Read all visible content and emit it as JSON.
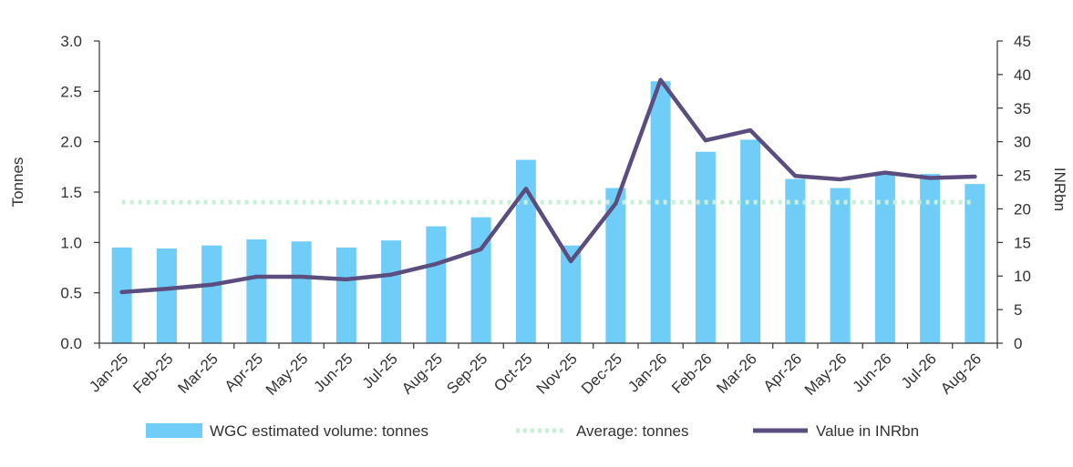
{
  "chart_data": {
    "type": "bar",
    "categories": [
      "Jan-25",
      "Feb-25",
      "Mar-25",
      "Apr-25",
      "May-25",
      "Jun-25",
      "Jul-25",
      "Aug-25",
      "Sep-25",
      "Oct-25",
      "Nov-25",
      "Dec-25",
      "Jan-26",
      "Feb-26",
      "Mar-26",
      "Apr-26",
      "May-26",
      "Jun-26",
      "Jul-26",
      "Aug-26"
    ],
    "series": [
      {
        "name": "WGC estimated volume: tonnes",
        "kind": "bar",
        "axis": "left",
        "values": [
          0.95,
          0.94,
          0.97,
          1.03,
          1.01,
          0.95,
          1.02,
          1.16,
          1.25,
          1.82,
          0.97,
          1.54,
          2.6,
          1.9,
          2.02,
          1.63,
          1.54,
          1.7,
          1.68,
          1.58
        ]
      },
      {
        "name": "Average: tonnes",
        "kind": "dotted-line",
        "axis": "left",
        "values": [
          1.4,
          1.4,
          1.4,
          1.4,
          1.4,
          1.4,
          1.4,
          1.4,
          1.4,
          1.4,
          1.4,
          1.4,
          1.4,
          1.4,
          1.4,
          1.4,
          1.4,
          1.4,
          1.4,
          1.4
        ]
      },
      {
        "name": "Value in INRbn",
        "kind": "line",
        "axis": "right",
        "values": [
          7.6,
          8.1,
          8.7,
          9.9,
          9.9,
          9.5,
          10.2,
          11.8,
          14.0,
          23.0,
          12.2,
          20.8,
          39.2,
          30.2,
          31.7,
          24.9,
          24.4,
          25.4,
          24.6,
          24.8
        ]
      }
    ],
    "ylabel": "Tonnes",
    "y2label": "INRbn",
    "ylim": [
      0,
      3.0
    ],
    "y2lim": [
      0,
      45
    ],
    "yticks": [
      "0.0",
      "0.5",
      "1.0",
      "1.5",
      "2.0",
      "2.5",
      "3.0"
    ],
    "y2ticks": [
      "0",
      "5",
      "10",
      "15",
      "20",
      "25",
      "30",
      "35",
      "40",
      "45"
    ],
    "legend_position": "bottom",
    "grid": false,
    "colors": {
      "bar": "#6fcdf7",
      "average": "#c8f0d8",
      "line": "#5b4e7f",
      "axis": "#333333"
    }
  }
}
